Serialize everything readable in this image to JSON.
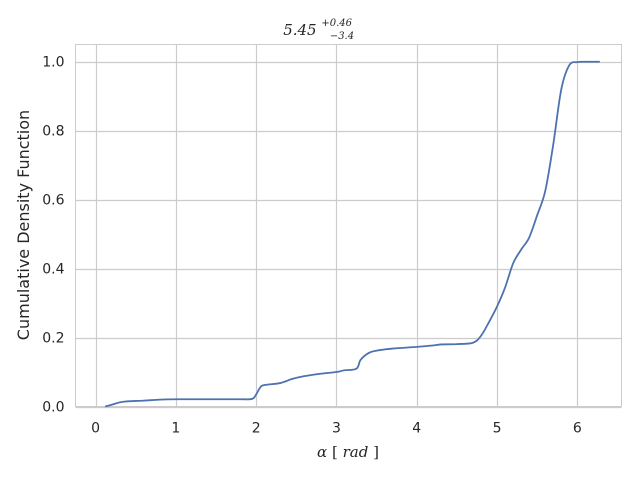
{
  "chart_data": {
    "type": "line",
    "title": {
      "base": "5.45",
      "upper": "+0.46",
      "lower": "−3.4"
    },
    "xlabel": {
      "symbol": "α",
      "open": "[",
      "unit": "rad",
      "close": "]"
    },
    "ylabel": "Cumulative Density Function",
    "xlim": [
      -0.25,
      6.55
    ],
    "ylim": [
      0.0,
      1.05
    ],
    "xticks": [
      0,
      1,
      2,
      3,
      4,
      5,
      6
    ],
    "xtick_labels": [
      "0",
      "1",
      "2",
      "3",
      "4",
      "5",
      "6"
    ],
    "yticks": [
      0.0,
      0.2,
      0.4,
      0.6,
      0.8,
      1.0
    ],
    "ytick_labels": [
      "0.0",
      "0.2",
      "0.4",
      "0.6",
      "0.8",
      "1.0"
    ],
    "grid": true,
    "colors": {
      "line": "#4c72b0",
      "grid": "#cccccc",
      "spine": "#cccccc"
    },
    "series": [
      {
        "x": [
          0.12,
          0.2,
          0.3,
          0.4,
          0.6,
          0.8,
          1.0,
          1.5,
          1.8,
          1.95,
          2.0,
          2.05,
          2.1,
          2.3,
          2.45,
          2.6,
          2.8,
          3.0,
          3.1,
          3.25,
          3.3,
          3.4,
          3.5,
          3.7,
          4.0,
          4.2,
          4.3,
          4.5,
          4.7,
          4.8,
          4.9,
          5.0,
          5.1,
          5.2,
          5.3,
          5.4,
          5.5,
          5.6,
          5.7,
          5.8,
          5.9,
          6.0,
          6.1,
          6.28
        ],
        "y": [
          0.0,
          0.005,
          0.012,
          0.015,
          0.017,
          0.02,
          0.021,
          0.021,
          0.021,
          0.022,
          0.035,
          0.055,
          0.062,
          0.068,
          0.08,
          0.088,
          0.095,
          0.1,
          0.105,
          0.11,
          0.135,
          0.155,
          0.162,
          0.168,
          0.173,
          0.177,
          0.18,
          0.181,
          0.185,
          0.205,
          0.245,
          0.29,
          0.345,
          0.415,
          0.455,
          0.49,
          0.555,
          0.625,
          0.76,
          0.92,
          0.99,
          0.999,
          1.0,
          1.0
        ]
      }
    ]
  }
}
